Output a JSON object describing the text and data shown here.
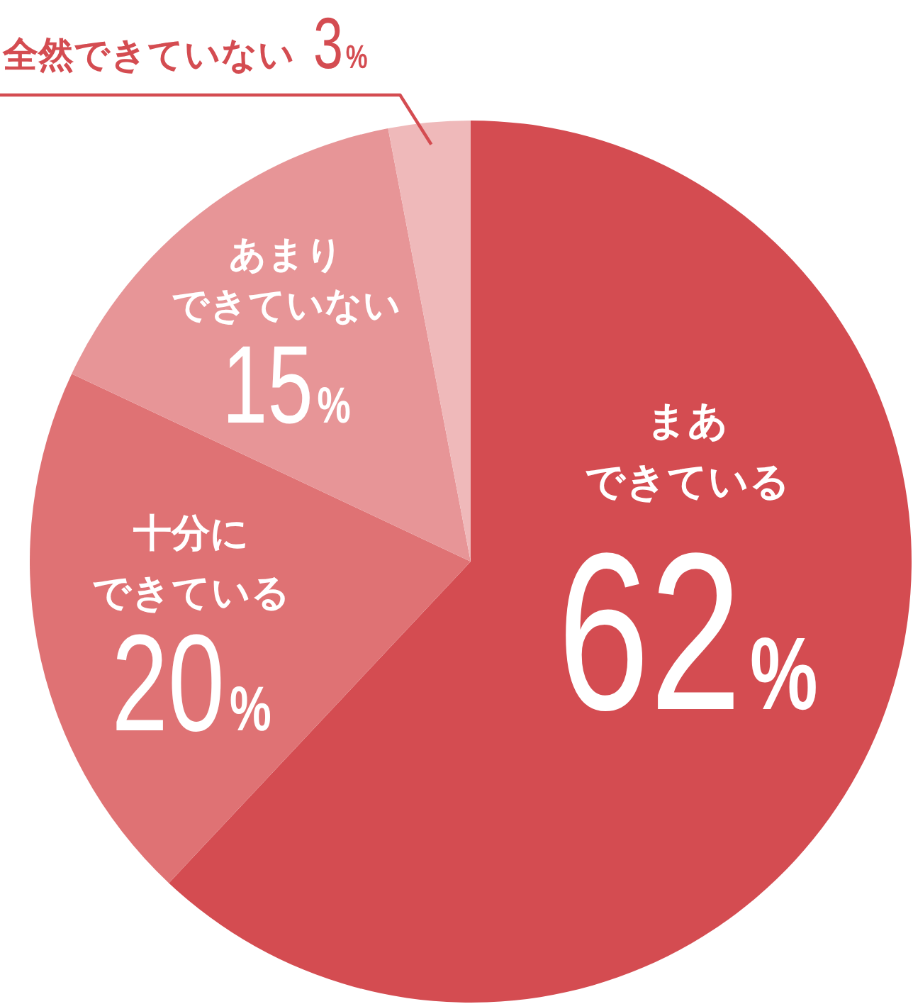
{
  "chart_data": {
    "type": "pie",
    "categories": [
      "まあできている",
      "十分にできている",
      "あまりできていない",
      "全然できていない"
    ],
    "values": [
      62,
      20,
      15,
      3
    ],
    "colors": [
      "#d44c51",
      "#df7274",
      "#e79597",
      "#efb9ba"
    ],
    "value_labels": [
      "62%",
      "20%",
      "15%",
      "3%"
    ]
  }
}
